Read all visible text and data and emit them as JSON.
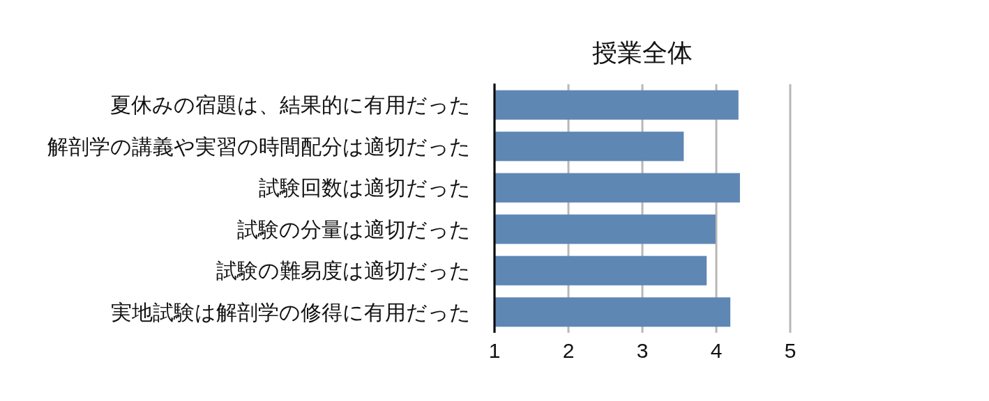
{
  "chart_data": {
    "type": "bar",
    "orientation": "horizontal",
    "title": "授業全体",
    "categories": [
      "夏休みの宿題は、結果的に有用だった",
      "解剖学の講義や実習の時間配分は適切だった",
      "試験回数は適切だった",
      "試験の分量は適切だった",
      "試験の難易度は適切だった",
      "実地試験は解剖学の修得に有用だった"
    ],
    "values": [
      4.3,
      3.56,
      4.32,
      3.99,
      3.87,
      4.19
    ],
    "color": "#5f87b4",
    "xlim": [
      1,
      5
    ],
    "xticks": [
      1,
      2,
      3,
      4,
      5
    ],
    "grid": "x"
  }
}
